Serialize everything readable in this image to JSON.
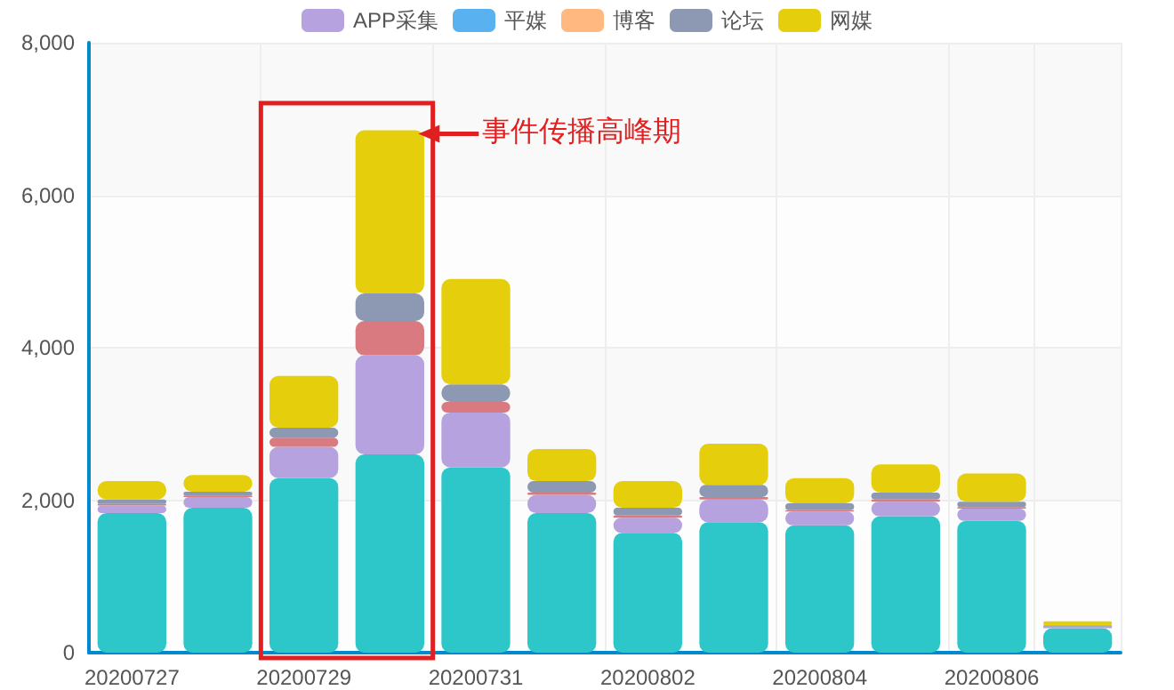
{
  "chart_data": {
    "type": "bar",
    "stacked": true,
    "categories": [
      "20200727",
      null,
      "20200729",
      null,
      "20200731",
      null,
      "20200802",
      null,
      "20200804",
      null,
      "20200806",
      null
    ],
    "series": [
      {
        "color": "#2ec7c9",
        "values": [
          1830,
          1900,
          2290,
          2600,
          2430,
          1830,
          1570,
          1710,
          1670,
          1790,
          1730,
          320
        ]
      },
      {
        "name": "APP采集",
        "color": "#b6a2de",
        "values": [
          100,
          140,
          410,
          1300,
          720,
          240,
          200,
          300,
          180,
          190,
          160,
          20
        ]
      },
      {
        "name": "平媒",
        "color": "#5ab1ef",
        "values": [
          0,
          0,
          0,
          0,
          0,
          0,
          0,
          0,
          0,
          0,
          0,
          0
        ]
      },
      {
        "name": "博客",
        "color": "#ffb980",
        "values": [
          0,
          0,
          0,
          0,
          0,
          0,
          0,
          0,
          0,
          0,
          0,
          0
        ]
      },
      {
        "color": "#d87a80",
        "values": [
          20,
          20,
          120,
          450,
          140,
          30,
          30,
          30,
          20,
          30,
          20,
          0
        ]
      },
      {
        "name": "论坛",
        "color": "#8d98b3",
        "values": [
          60,
          50,
          130,
          360,
          230,
          150,
          100,
          160,
          90,
          90,
          70,
          20
        ]
      },
      {
        "name": "网媒",
        "color": "#e5cf0d",
        "values": [
          240,
          220,
          680,
          2140,
          1380,
          420,
          350,
          540,
          330,
          370,
          370,
          50
        ]
      }
    ],
    "ylim": [
      0,
      8000
    ],
    "yticks": [
      0,
      {
        "value": 2000,
        "label": "2,000"
      },
      {
        "value": 4000,
        "label": "4,000"
      },
      {
        "value": 6000,
        "label": "6,000"
      },
      {
        "value": 8000,
        "label": "8,000"
      }
    ],
    "grid": true,
    "legend": "top",
    "annotations": [
      "事件传播高峰期"
    ]
  }
}
